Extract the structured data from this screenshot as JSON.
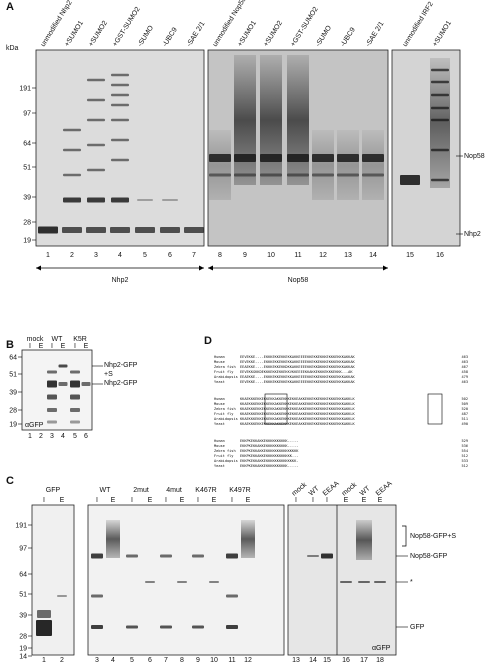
{
  "panel_a": {
    "label": "A",
    "unit": "kDa",
    "columns": [
      "unmodified Nhp2",
      "+SUMO1",
      "+SUMO2",
      "+GST-SUMO2",
      "-SUMO",
      "-UBC9",
      "-SAE 2/1",
      "unmodified Nop58",
      "+SUMO1",
      "+SUMO2",
      "+GST-SUMO2",
      "-SUMO",
      "-UBC9",
      "-SAE 2/1",
      "unmodified IRF2",
      "+SUMO1"
    ],
    "markers": [
      191,
      97,
      64,
      51,
      39,
      28,
      19
    ],
    "lanes": [
      1,
      2,
      3,
      4,
      5,
      6,
      7,
      8,
      9,
      10,
      11,
      12,
      13,
      14,
      15,
      16
    ],
    "bands": [
      "Nop58",
      "Nhp2"
    ],
    "groups": [
      "Nhp2",
      "Nop58"
    ]
  },
  "panel_b": {
    "label": "B",
    "unit": "kDa",
    "groups": [
      "mock",
      "WT",
      "K5R"
    ],
    "fractions": [
      "I",
      "E",
      "I",
      "E",
      "I",
      "E"
    ],
    "markers": [
      64,
      51,
      39,
      28,
      19
    ],
    "lanes": [
      1,
      2,
      3,
      4,
      5,
      6
    ],
    "bands": [
      "Nhp2-GFP",
      "+S",
      "Nhp2-GFP"
    ],
    "antibody": "αGFP"
  },
  "panel_c": {
    "label": "C",
    "unit": "kDa",
    "groups": [
      "GFP",
      "WT",
      "2mut",
      "4mut",
      "K467R",
      "K497R",
      "mock",
      "WT",
      "EEAA",
      "mock",
      "WT",
      "EEAA"
    ],
    "fractions": [
      "I",
      "E",
      "I",
      "E",
      "I",
      "E",
      "I",
      "E",
      "I",
      "E",
      "I",
      "E",
      "I",
      "I",
      "I",
      "E",
      "E",
      "E"
    ],
    "markers": [
      191,
      97,
      64,
      51,
      39,
      28,
      19,
      14
    ],
    "lanes": [
      1,
      2,
      3,
      4,
      5,
      6,
      7,
      8,
      9,
      10,
      11,
      12,
      13,
      14,
      15,
      16,
      17,
      18
    ],
    "bands": [
      "Nop58-GFP+S",
      "Nop58-GFP",
      "*",
      "GFP"
    ],
    "antibody": "αGFP"
  },
  "panel_d": {
    "label": "D",
    "blocks": [
      {
        "rows": [
          {
            "species": "Human",
            "sequence": "EEVEKKE----EKKKEKKEKKEKKAKKEEEEKKEKKEKKKEKKKEKKKAKKAK",
            "end": 463
          },
          {
            "species": "Mouse",
            "sequence": "EEVEKKE----EKKKEKKEKKEKKAKKEEEEKKEKKEKKKEKKKEKKKAKKAK",
            "end": 463
          },
          {
            "species": "Zebra fish",
            "sequence": "EEAEKKE----EKKKEKKEKKDKKAKKEEEEKKEKKDKKKEKKKEKKKAKKAK",
            "end": 467
          },
          {
            "species": "Fruit fly",
            "sequence": "EEVEKKGKKDEKKKEKKEKKEKKVKKEEEEKKAKKEKKKEKKKEKKK---AK",
            "end": 458
          },
          {
            "species": "Arabidopsis",
            "sequence": "EEAEKKE----EKKKEKKEKKEKKAKKEEEEKKEKKEKKKEKKKEKKKAKKAK",
            "end": 479
          },
          {
            "species": "Yeast",
            "sequence": "EEVEKKE----EKKKEKKEKKEKKAKKEEEEKKEKKEKKKEKKKEKKKAKKAK",
            "end": 463
          }
        ]
      },
      {
        "rows": [
          {
            "species": "Human",
            "sequence": "KKAEKKKEKKEKKEKKAKKEKKKEKKEAKKEKKEKKEKKKEKKKEKKKAKKLK",
            "end": 502
          },
          {
            "species": "Mouse",
            "sequence": "KKAEKKKEKKEKKEKKAKKEKKKEKKEAKKEKKEKKEKKKEKKKEKKKAKKLK",
            "end": 509
          },
          {
            "species": "Zebra fish",
            "sequence": "KKAEKKKEKKEKKEKKAKKEKKKEKKEAKKEKKEKKEKKKEKKKEKKKAKKLK",
            "end": 520
          },
          {
            "species": "Fruit fly",
            "sequence": "KKAEKKKEKKEKKEKKAKKEKKKEKKEAKKEKKEKKEKKKEKKKEKKKAKKLK",
            "end": 487
          },
          {
            "species": "Arabidopsis",
            "sequence": "KKAEKKKEKKEKKEKKAKKEKKKEKKEAKKEKKEKKEKKKEKKKEKKKAKKLK",
            "end": 511
          },
          {
            "species": "Yeast",
            "sequence": "KKAEKKKEKKEKKEKKAKKEKKKEKKEAKKEKKEKKEKKKEKKKEKKKAKKLK",
            "end": 490
          }
        ]
      },
      {
        "rows": [
          {
            "species": "Human",
            "sequence": "EKKPKEKKAKKEKKKKKKKKKK-----",
            "end": 529
          },
          {
            "species": "Mouse",
            "sequence": "EKKPKEKKAKKEKKKKKKKKKK-----",
            "end": 536
          },
          {
            "species": "Zebra fish",
            "sequence": "EKKPKEKKAKKEKKKKKKKKKKKKKKK",
            "end": 554
          },
          {
            "species": "Fruit fly",
            "sequence": "EKKPKEKKAKKEKKKKKKKKKKKK---",
            "end": 512
          },
          {
            "species": "Arabidopsis",
            "sequence": "EKKPKEKKAKKEKKKKKKKKKKKKKK-",
            "end": 533
          },
          {
            "species": "Yeast",
            "sequence": "EKKPKEKKAKKEKKKKKKKKKK-----",
            "end": 512
          }
        ]
      }
    ]
  }
}
